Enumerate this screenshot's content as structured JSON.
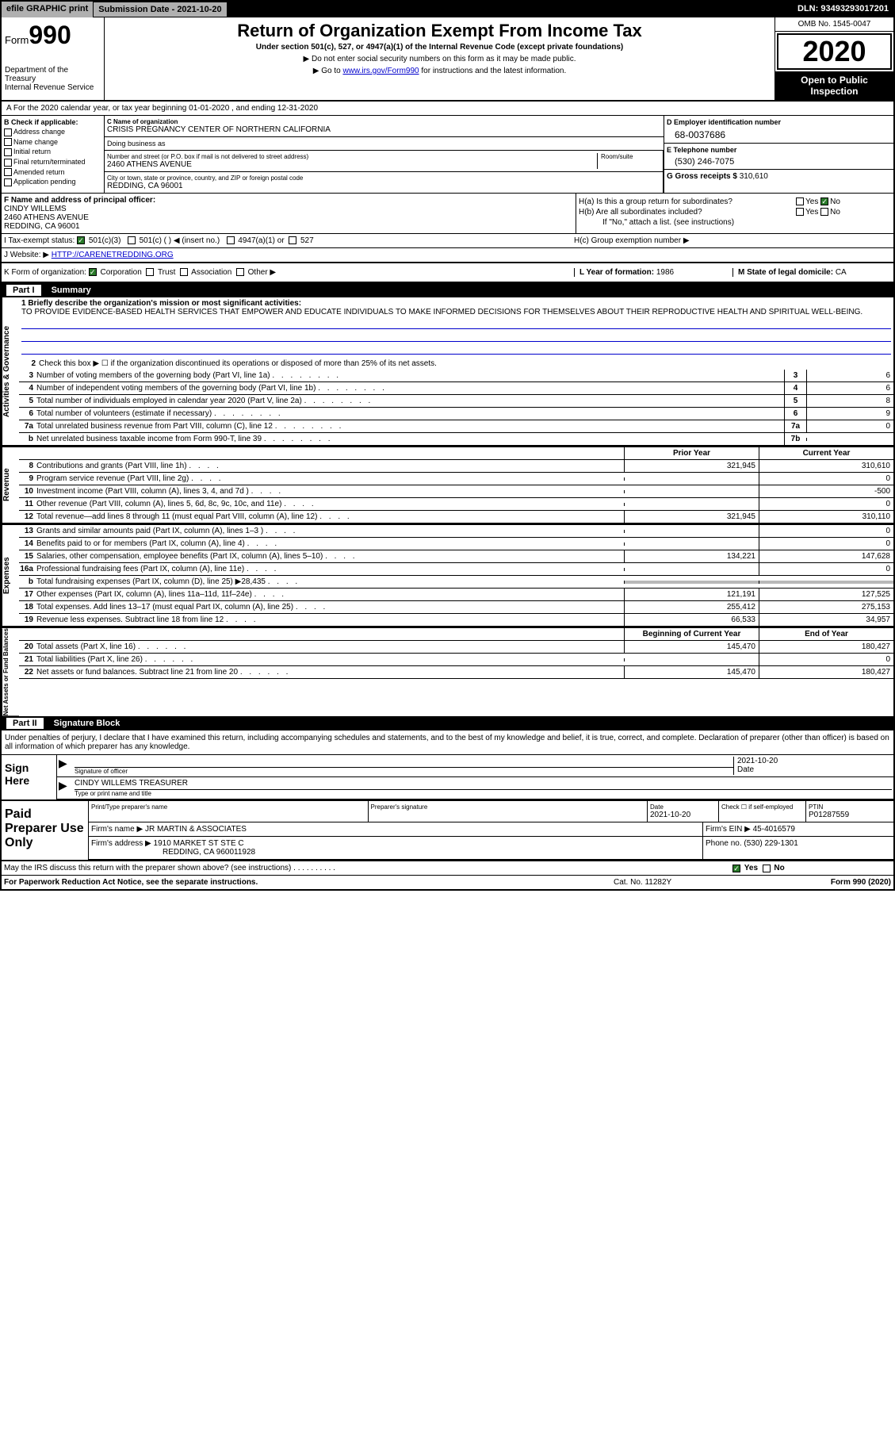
{
  "topbar": {
    "efile": "efile GRAPHIC print",
    "submission": "Submission Date - 2021-10-20",
    "dln": "DLN: 93493293017201"
  },
  "header": {
    "form_prefix": "Form",
    "form_number": "990",
    "dept": "Department of the Treasury\nInternal Revenue Service",
    "title": "Return of Organization Exempt From Income Tax",
    "sub1": "Under section 501(c), 527, or 4947(a)(1) of the Internal Revenue Code (except private foundations)",
    "sub2": "▶ Do not enter social security numbers on this form as it may be made public.",
    "sub3_pre": "▶ Go to ",
    "sub3_link": "www.irs.gov/Form990",
    "sub3_post": " for instructions and the latest information.",
    "omb": "OMB No. 1545-0047",
    "year": "2020",
    "inspection": "Open to Public Inspection"
  },
  "row_a": "A For the 2020 calendar year, or tax year beginning 01-01-2020    , and ending 12-31-2020",
  "col_b": {
    "label": "B Check if applicable:",
    "items": [
      "Address change",
      "Name change",
      "Initial return",
      "Final return/terminated",
      "Amended return",
      "Application pending"
    ]
  },
  "org": {
    "name_label": "C Name of organization",
    "name": "CRISIS PREGNANCY CENTER OF NORTHERN CALIFORNIA",
    "dba_label": "Doing business as",
    "street_label": "Number and street (or P.O. box if mail is not delivered to street address)",
    "room_label": "Room/suite",
    "street": "2460 ATHENS AVENUE",
    "city_label": "City or town, state or province, country, and ZIP or foreign postal code",
    "city": "REDDING, CA  96001"
  },
  "col_d": {
    "ein_label": "D Employer identification number",
    "ein": "68-0037686",
    "phone_label": "E Telephone number",
    "phone": "(530) 246-7075",
    "gross_label": "G Gross receipts $ ",
    "gross": "310,610"
  },
  "officer": {
    "label": "F  Name and address of principal officer:",
    "name": "CINDY WILLEMS",
    "addr1": "2460 ATHENS AVENUE",
    "addr2": "REDDING, CA  96001"
  },
  "col_h": {
    "ha_label": "H(a)  Is this a group return for subordinates?",
    "hb_label": "H(b)  Are all subordinates included?",
    "hb_note": "If \"No,\" attach a list. (see instructions)",
    "hc_label": "H(c)  Group exemption number ▶",
    "yes": "Yes",
    "no": "No"
  },
  "tax_status": {
    "label": "I   Tax-exempt status:",
    "opt1": "501(c)(3)",
    "opt2": "501(c) (  ) ◀ (insert no.)",
    "opt3": "4947(a)(1) or",
    "opt4": "527"
  },
  "website": {
    "label": "J   Website: ▶ ",
    "url": "HTTP://CARENETREDDING.ORG"
  },
  "form_org": {
    "label": "K Form of organization:",
    "corp": "Corporation",
    "trust": "Trust",
    "assoc": "Association",
    "other": "Other ▶",
    "year_label": "L Year of formation: ",
    "year": "1986",
    "state_label": "M State of legal domicile: ",
    "state": "CA"
  },
  "part1": {
    "header_num": "Part I",
    "header_title": "Summary",
    "line1_label": "1  Briefly describe the organization's mission or most significant activities:",
    "mission": "TO PROVIDE EVIDENCE-BASED HEALTH SERVICES THAT EMPOWER AND EDUCATE INDIVIDUALS TO MAKE INFORMED DECISIONS FOR THEMSELVES ABOUT THEIR REPRODUCTIVE HEALTH AND SPIRITUAL WELL-BEING.",
    "line2": "Check this box ▶ ☐  if the organization discontinued its operations or disposed of more than 25% of its net assets.",
    "vtab_activities": "Activities & Governance",
    "vtab_revenue": "Revenue",
    "vtab_expenses": "Expenses",
    "vtab_netassets": "Net Assets or Fund Balances"
  },
  "gov_lines": [
    {
      "num": "3",
      "desc": "Number of voting members of the governing body (Part VI, line 1a)",
      "box": "3",
      "val": "6"
    },
    {
      "num": "4",
      "desc": "Number of independent voting members of the governing body (Part VI, line 1b)",
      "box": "4",
      "val": "6"
    },
    {
      "num": "5",
      "desc": "Total number of individuals employed in calendar year 2020 (Part V, line 2a)",
      "box": "5",
      "val": "8"
    },
    {
      "num": "6",
      "desc": "Total number of volunteers (estimate if necessary)",
      "box": "6",
      "val": "9"
    },
    {
      "num": "7a",
      "desc": "Total unrelated business revenue from Part VIII, column (C), line 12",
      "box": "7a",
      "val": "0"
    },
    {
      "num": "b",
      "desc": "Net unrelated business taxable income from Form 990-T, line 39",
      "box": "7b",
      "val": ""
    }
  ],
  "prior_header": "Prior Year",
  "current_header": "Current Year",
  "revenue_lines": [
    {
      "num": "8",
      "desc": "Contributions and grants (Part VIII, line 1h)",
      "prior": "321,945",
      "current": "310,610"
    },
    {
      "num": "9",
      "desc": "Program service revenue (Part VIII, line 2g)",
      "prior": "",
      "current": "0"
    },
    {
      "num": "10",
      "desc": "Investment income (Part VIII, column (A), lines 3, 4, and 7d )",
      "prior": "",
      "current": "-500"
    },
    {
      "num": "11",
      "desc": "Other revenue (Part VIII, column (A), lines 5, 6d, 8c, 9c, 10c, and 11e)",
      "prior": "",
      "current": "0"
    },
    {
      "num": "12",
      "desc": "Total revenue—add lines 8 through 11 (must equal Part VIII, column (A), line 12)",
      "prior": "321,945",
      "current": "310,110"
    }
  ],
  "expense_lines": [
    {
      "num": "13",
      "desc": "Grants and similar amounts paid (Part IX, column (A), lines 1–3 )",
      "prior": "",
      "current": "0"
    },
    {
      "num": "14",
      "desc": "Benefits paid to or for members (Part IX, column (A), line 4)",
      "prior": "",
      "current": "0"
    },
    {
      "num": "15",
      "desc": "Salaries, other compensation, employee benefits (Part IX, column (A), lines 5–10)",
      "prior": "134,221",
      "current": "147,628"
    },
    {
      "num": "16a",
      "desc": "Professional fundraising fees (Part IX, column (A), line 11e)",
      "prior": "",
      "current": "0"
    },
    {
      "num": "b",
      "desc": "Total fundraising expenses (Part IX, column (D), line 25) ▶28,435",
      "prior": "GRAY",
      "current": "GRAY"
    },
    {
      "num": "17",
      "desc": "Other expenses (Part IX, column (A), lines 11a–11d, 11f–24e)",
      "prior": "121,191",
      "current": "127,525"
    },
    {
      "num": "18",
      "desc": "Total expenses. Add lines 13–17 (must equal Part IX, column (A), line 25)",
      "prior": "255,412",
      "current": "275,153"
    },
    {
      "num": "19",
      "desc": "Revenue less expenses. Subtract line 18 from line 12",
      "prior": "66,533",
      "current": "34,957"
    }
  ],
  "begin_header": "Beginning of Current Year",
  "end_header": "End of Year",
  "netasset_lines": [
    {
      "num": "20",
      "desc": "Total assets (Part X, line 16)",
      "prior": "145,470",
      "current": "180,427"
    },
    {
      "num": "21",
      "desc": "Total liabilities (Part X, line 26)",
      "prior": "",
      "current": "0"
    },
    {
      "num": "22",
      "desc": "Net assets or fund balances. Subtract line 21 from line 20",
      "prior": "145,470",
      "current": "180,427"
    }
  ],
  "part2": {
    "header_num": "Part II",
    "header_title": "Signature Block",
    "declaration": "Under penalties of perjury, I declare that I have examined this return, including accompanying schedules and statements, and to the best of my knowledge and belief, it is true, correct, and complete. Declaration of preparer (other than officer) is based on all information of which preparer has any knowledge."
  },
  "sign": {
    "label": "Sign Here",
    "sig_label": "Signature of officer",
    "date_label": "Date",
    "date": "2021-10-20",
    "name": "CINDY WILLEMS  TREASURER",
    "name_label": "Type or print name and title"
  },
  "prep": {
    "label": "Paid Preparer Use Only",
    "print_label": "Print/Type preparer's name",
    "sig_label": "Preparer's signature",
    "date_label": "Date",
    "date": "2021-10-20",
    "check_label": "Check ☐ if self-employed",
    "ptin_label": "PTIN",
    "ptin": "P01287559",
    "firm_name_label": "Firm's name    ▶ ",
    "firm_name": "JR MARTIN & ASSOCIATES",
    "firm_ein_label": "Firm's EIN ▶ ",
    "firm_ein": "45-4016579",
    "firm_addr_label": "Firm's address ▶ ",
    "firm_addr1": "1910 MARKET ST STE C",
    "firm_addr2": "REDDING, CA  960011928",
    "phone_label": "Phone no. ",
    "phone": "(530) 229-1301"
  },
  "footer": {
    "discuss": "May the IRS discuss this return with the preparer shown above? (see instructions)",
    "yes": "Yes",
    "no": "No",
    "paperwork": "For Paperwork Reduction Act Notice, see the separate instructions.",
    "cat": "Cat. No. 11282Y",
    "form": "Form 990 (2020)"
  }
}
